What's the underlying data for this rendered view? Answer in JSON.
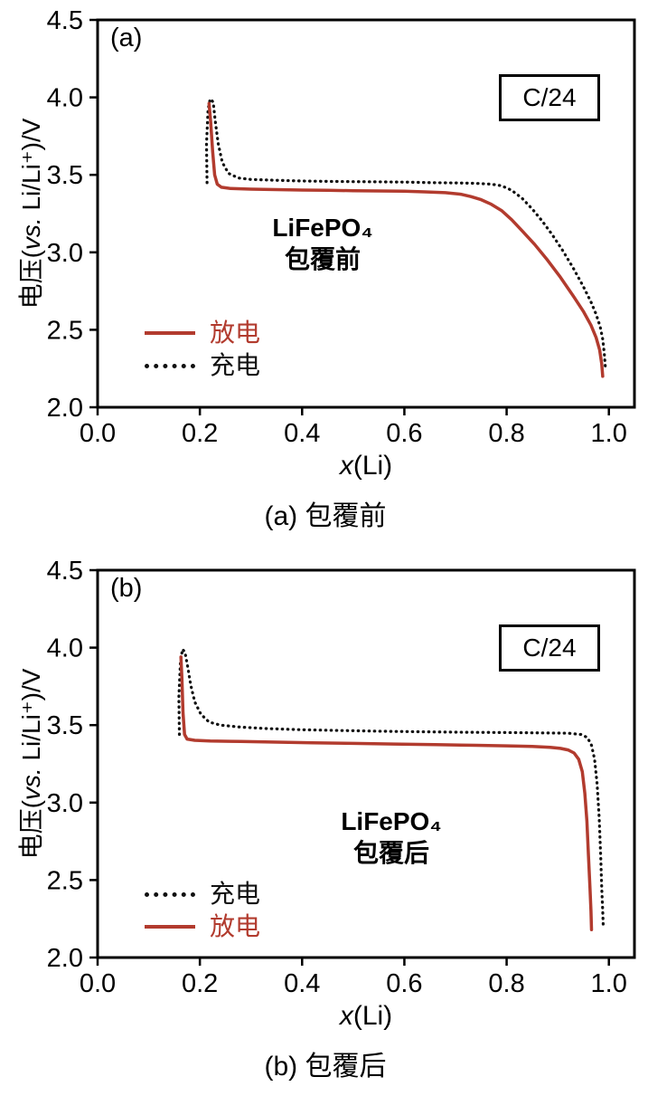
{
  "page": {
    "background": "#ffffff"
  },
  "colors": {
    "frame": "#000000",
    "charge_line": "#111111",
    "discharge_line": "#b23b2e",
    "text": "#000000"
  },
  "axis": {
    "ylabel_prefix": "电压(",
    "ylabel_italic": "vs.",
    "ylabel_rest": " Li/Li⁺)/V",
    "xlabel_italic": "x",
    "xlabel_rest": "(Li)"
  },
  "panels": [
    {
      "panel_label": "(a)",
      "rate_label": "C/24",
      "annotation_line1": "LiFePO₄",
      "annotation_line2": "包覆前",
      "caption": "(a) 包覆前",
      "legend": [
        {
          "label": "放电",
          "series": "discharge",
          "style": "solid",
          "color": "#b23b2e"
        },
        {
          "label": "充电",
          "series": "charge",
          "style": "dotted",
          "color": "#111111"
        }
      ]
    },
    {
      "panel_label": "(b)",
      "rate_label": "C/24",
      "annotation_line1": "LiFePO₄",
      "annotation_line2": "包覆后",
      "caption": "(b) 包覆后",
      "legend": [
        {
          "label": "充电",
          "series": "charge",
          "style": "dotted",
          "color": "#111111"
        },
        {
          "label": "放电",
          "series": "discharge",
          "style": "solid",
          "color": "#b23b2e"
        }
      ]
    }
  ],
  "chart_data": [
    {
      "type": "line",
      "title": "(a) 包覆前 — LiFePO₄ charge/discharge voltage profiles at C/24",
      "xlabel": "x(Li)",
      "ylabel": "电压(vs. Li/Li⁺)/V",
      "xlim": [
        0.0,
        1.05
      ],
      "ylim": [
        2.0,
        4.5
      ],
      "x_ticks": [
        0.0,
        0.2,
        0.4,
        0.6,
        0.8,
        1.0
      ],
      "y_ticks": [
        2.0,
        2.5,
        3.0,
        3.5,
        4.0,
        4.5
      ],
      "grid": false,
      "legend_position": "lower-left",
      "series": [
        {
          "name": "充电",
          "name_id": "charge",
          "style": "dotted",
          "color": "#111111",
          "points": [
            [
              0.214,
              3.45
            ],
            [
              0.213,
              3.7
            ],
            [
              0.216,
              3.92
            ],
            [
              0.22,
              3.99
            ],
            [
              0.226,
              3.97
            ],
            [
              0.23,
              3.85
            ],
            [
              0.236,
              3.7
            ],
            [
              0.244,
              3.58
            ],
            [
              0.256,
              3.51
            ],
            [
              0.275,
              3.48
            ],
            [
              0.3,
              3.47
            ],
            [
              0.35,
              3.465
            ],
            [
              0.4,
              3.46
            ],
            [
              0.45,
              3.458
            ],
            [
              0.5,
              3.456
            ],
            [
              0.55,
              3.455
            ],
            [
              0.6,
              3.453
            ],
            [
              0.65,
              3.45
            ],
            [
              0.7,
              3.448
            ],
            [
              0.74,
              3.445
            ],
            [
              0.77,
              3.44
            ],
            [
              0.79,
              3.43
            ],
            [
              0.81,
              3.4
            ],
            [
              0.83,
              3.35
            ],
            [
              0.85,
              3.28
            ],
            [
              0.87,
              3.2
            ],
            [
              0.89,
              3.11
            ],
            [
              0.91,
              3.01
            ],
            [
              0.93,
              2.9
            ],
            [
              0.95,
              2.78
            ],
            [
              0.965,
              2.68
            ],
            [
              0.975,
              2.6
            ],
            [
              0.983,
              2.52
            ],
            [
              0.988,
              2.44
            ],
            [
              0.991,
              2.35
            ],
            [
              0.993,
              2.26
            ]
          ]
        },
        {
          "name": "放电",
          "name_id": "discharge",
          "style": "solid",
          "color": "#b23b2e",
          "points": [
            [
              0.218,
              3.96
            ],
            [
              0.221,
              3.85
            ],
            [
              0.225,
              3.65
            ],
            [
              0.229,
              3.5
            ],
            [
              0.234,
              3.44
            ],
            [
              0.242,
              3.42
            ],
            [
              0.26,
              3.412
            ],
            [
              0.3,
              3.408
            ],
            [
              0.35,
              3.405
            ],
            [
              0.4,
              3.402
            ],
            [
              0.45,
              3.4
            ],
            [
              0.5,
              3.398
            ],
            [
              0.55,
              3.396
            ],
            [
              0.6,
              3.394
            ],
            [
              0.64,
              3.39
            ],
            [
              0.68,
              3.385
            ],
            [
              0.71,
              3.375
            ],
            [
              0.73,
              3.36
            ],
            [
              0.75,
              3.34
            ],
            [
              0.77,
              3.31
            ],
            [
              0.79,
              3.27
            ],
            [
              0.81,
              3.21
            ],
            [
              0.83,
              3.14
            ],
            [
              0.855,
              3.05
            ],
            [
              0.88,
              2.95
            ],
            [
              0.905,
              2.84
            ],
            [
              0.93,
              2.72
            ],
            [
              0.95,
              2.62
            ],
            [
              0.965,
              2.53
            ],
            [
              0.975,
              2.45
            ],
            [
              0.982,
              2.37
            ],
            [
              0.986,
              2.28
            ],
            [
              0.988,
              2.2
            ]
          ]
        }
      ]
    },
    {
      "type": "line",
      "title": "(b) 包覆后 — LiFePO₄ charge/discharge voltage profiles at C/24",
      "xlabel": "x(Li)",
      "ylabel": "电压(vs. Li/Li⁺)/V",
      "xlim": [
        0.0,
        1.05
      ],
      "ylim": [
        2.0,
        4.5
      ],
      "x_ticks": [
        0.0,
        0.2,
        0.4,
        0.6,
        0.8,
        1.0
      ],
      "y_ticks": [
        2.0,
        2.5,
        3.0,
        3.5,
        4.0,
        4.5
      ],
      "grid": false,
      "legend_position": "lower-left",
      "series": [
        {
          "name": "充电",
          "name_id": "charge",
          "style": "dotted",
          "color": "#111111",
          "points": [
            [
              0.16,
              3.44
            ],
            [
              0.159,
              3.68
            ],
            [
              0.162,
              3.9
            ],
            [
              0.166,
              3.99
            ],
            [
              0.171,
              3.97
            ],
            [
              0.176,
              3.88
            ],
            [
              0.182,
              3.76
            ],
            [
              0.19,
              3.65
            ],
            [
              0.202,
              3.57
            ],
            [
              0.218,
              3.52
            ],
            [
              0.24,
              3.5
            ],
            [
              0.28,
              3.487
            ],
            [
              0.33,
              3.478
            ],
            [
              0.4,
              3.47
            ],
            [
              0.48,
              3.465
            ],
            [
              0.56,
              3.46
            ],
            [
              0.64,
              3.457
            ],
            [
              0.72,
              3.454
            ],
            [
              0.8,
              3.452
            ],
            [
              0.87,
              3.45
            ],
            [
              0.92,
              3.448
            ],
            [
              0.945,
              3.44
            ],
            [
              0.958,
              3.42
            ],
            [
              0.966,
              3.37
            ],
            [
              0.972,
              3.28
            ],
            [
              0.977,
              3.12
            ],
            [
              0.981,
              2.9
            ],
            [
              0.984,
              2.65
            ],
            [
              0.986,
              2.45
            ],
            [
              0.988,
              2.3
            ],
            [
              0.989,
              2.2
            ]
          ]
        },
        {
          "name": "放电",
          "name_id": "discharge",
          "style": "solid",
          "color": "#b23b2e",
          "points": [
            [
              0.163,
              3.94
            ],
            [
              0.165,
              3.8
            ],
            [
              0.167,
              3.58
            ],
            [
              0.17,
              3.44
            ],
            [
              0.175,
              3.41
            ],
            [
              0.19,
              3.402
            ],
            [
              0.22,
              3.398
            ],
            [
              0.28,
              3.394
            ],
            [
              0.35,
              3.39
            ],
            [
              0.42,
              3.386
            ],
            [
              0.5,
              3.382
            ],
            [
              0.58,
              3.378
            ],
            [
              0.66,
              3.374
            ],
            [
              0.74,
              3.37
            ],
            [
              0.8,
              3.366
            ],
            [
              0.85,
              3.362
            ],
            [
              0.885,
              3.357
            ],
            [
              0.905,
              3.35
            ],
            [
              0.92,
              3.34
            ],
            [
              0.932,
              3.32
            ],
            [
              0.941,
              3.28
            ],
            [
              0.948,
              3.2
            ],
            [
              0.953,
              3.06
            ],
            [
              0.957,
              2.88
            ],
            [
              0.96,
              2.66
            ],
            [
              0.963,
              2.45
            ],
            [
              0.965,
              2.3
            ],
            [
              0.966,
              2.18
            ]
          ]
        }
      ]
    }
  ]
}
